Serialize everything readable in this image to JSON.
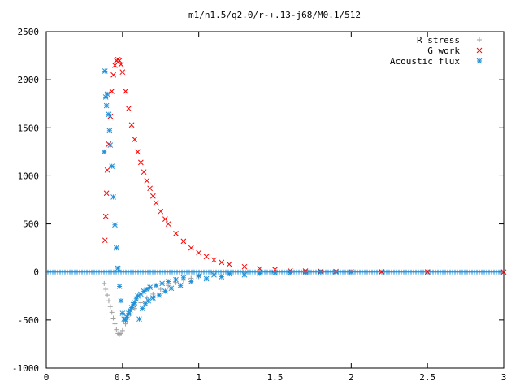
{
  "chart_data": {
    "type": "scatter",
    "title": "m1/n1.5/q2.0/r-+.13-j68/M0.1/512",
    "xlabel": "",
    "ylabel": "",
    "xlim": [
      0,
      3
    ],
    "ylim": [
      -1000,
      2500
    ],
    "x_ticks": [
      0,
      0.5,
      1,
      1.5,
      2,
      2.5,
      3
    ],
    "x_tick_labels": [
      "0",
      "0.5",
      "1",
      "1.5",
      "2",
      "2.5",
      "3"
    ],
    "y_ticks": [
      -1000,
      -500,
      0,
      500,
      1000,
      1500,
      2000,
      2500
    ],
    "y_tick_labels": [
      "-1000",
      "-500",
      "0",
      "500",
      "1000",
      "1500",
      "2000",
      "2500"
    ],
    "grid": false,
    "legend_position": "top-right",
    "series": [
      {
        "name": "R stress",
        "marker": "plus",
        "color": "#a0a0a0",
        "points": [
          [
            0.38,
            -120
          ],
          [
            0.39,
            -180
          ],
          [
            0.4,
            -240
          ],
          [
            0.41,
            -300
          ],
          [
            0.42,
            -360
          ],
          [
            0.43,
            -420
          ],
          [
            0.44,
            -480
          ],
          [
            0.45,
            -540
          ],
          [
            0.46,
            -600
          ],
          [
            0.47,
            -640
          ],
          [
            0.48,
            -650
          ],
          [
            0.49,
            -640
          ],
          [
            0.5,
            -610
          ],
          [
            0.52,
            -540
          ],
          [
            0.55,
            -440
          ],
          [
            0.58,
            -380
          ],
          [
            0.62,
            -320
          ],
          [
            0.66,
            -270
          ],
          [
            0.7,
            -230
          ],
          [
            0.75,
            -180
          ],
          [
            0.8,
            -140
          ],
          [
            0.85,
            -110
          ],
          [
            0.9,
            -85
          ],
          [
            0.95,
            -65
          ],
          [
            1.0,
            -50
          ],
          [
            1.1,
            -30
          ],
          [
            1.2,
            -18
          ],
          [
            1.3,
            -10
          ],
          [
            1.4,
            -6
          ],
          [
            1.5,
            -3
          ],
          [
            1.6,
            -2
          ],
          [
            1.7,
            -1
          ],
          [
            1.8,
            0
          ]
        ]
      },
      {
        "name": "G work",
        "marker": "cross",
        "color": "#ff0000",
        "points": [
          [
            0.385,
            330
          ],
          [
            0.39,
            580
          ],
          [
            0.395,
            820
          ],
          [
            0.4,
            1060
          ],
          [
            0.41,
            1330
          ],
          [
            0.42,
            1620
          ],
          [
            0.43,
            1880
          ],
          [
            0.44,
            2050
          ],
          [
            0.45,
            2150
          ],
          [
            0.46,
            2200
          ],
          [
            0.47,
            2210
          ],
          [
            0.48,
            2200
          ],
          [
            0.49,
            2160
          ],
          [
            0.5,
            2080
          ],
          [
            0.52,
            1880
          ],
          [
            0.54,
            1700
          ],
          [
            0.56,
            1530
          ],
          [
            0.58,
            1380
          ],
          [
            0.6,
            1250
          ],
          [
            0.62,
            1140
          ],
          [
            0.64,
            1040
          ],
          [
            0.66,
            950
          ],
          [
            0.68,
            870
          ],
          [
            0.7,
            790
          ],
          [
            0.72,
            720
          ],
          [
            0.75,
            630
          ],
          [
            0.78,
            550
          ],
          [
            0.8,
            500
          ],
          [
            0.85,
            400
          ],
          [
            0.9,
            320
          ],
          [
            0.95,
            250
          ],
          [
            1.0,
            200
          ],
          [
            1.05,
            160
          ],
          [
            1.1,
            125
          ],
          [
            1.15,
            100
          ],
          [
            1.2,
            80
          ],
          [
            1.3,
            55
          ],
          [
            1.4,
            35
          ],
          [
            1.5,
            25
          ],
          [
            1.6,
            15
          ],
          [
            1.7,
            10
          ],
          [
            1.8,
            7
          ],
          [
            1.9,
            5
          ],
          [
            2.0,
            3
          ],
          [
            2.2,
            2
          ],
          [
            2.5,
            1
          ],
          [
            3.0,
            0
          ]
        ]
      },
      {
        "name": "Acoustic flux",
        "marker": "star",
        "color": "#1e8fd8",
        "points": [
          [
            0.38,
            1250
          ],
          [
            0.385,
            2090
          ],
          [
            0.39,
            1820
          ],
          [
            0.395,
            1730
          ],
          [
            0.4,
            1850
          ],
          [
            0.41,
            1640
          ],
          [
            0.415,
            1470
          ],
          [
            0.42,
            1320
          ],
          [
            0.43,
            1100
          ],
          [
            0.44,
            780
          ],
          [
            0.45,
            490
          ],
          [
            0.46,
            250
          ],
          [
            0.47,
            40
          ],
          [
            0.48,
            -150
          ],
          [
            0.49,
            -300
          ],
          [
            0.5,
            -430
          ],
          [
            0.51,
            -490
          ],
          [
            0.52,
            -500
          ],
          [
            0.53,
            -470
          ],
          [
            0.54,
            -430
          ],
          [
            0.55,
            -400
          ],
          [
            0.56,
            -370
          ],
          [
            0.57,
            -340
          ],
          [
            0.58,
            -320
          ],
          [
            0.59,
            -280
          ],
          [
            0.6,
            -250
          ],
          [
            0.61,
            -490
          ],
          [
            0.62,
            -230
          ],
          [
            0.63,
            -380
          ],
          [
            0.64,
            -200
          ],
          [
            0.65,
            -330
          ],
          [
            0.66,
            -180
          ],
          [
            0.67,
            -300
          ],
          [
            0.68,
            -160
          ],
          [
            0.7,
            -270
          ],
          [
            0.72,
            -140
          ],
          [
            0.74,
            -240
          ],
          [
            0.76,
            -120
          ],
          [
            0.78,
            -200
          ],
          [
            0.8,
            -100
          ],
          [
            0.82,
            -170
          ],
          [
            0.85,
            -80
          ],
          [
            0.88,
            -140
          ],
          [
            0.9,
            -60
          ],
          [
            0.95,
            -100
          ],
          [
            1.0,
            -40
          ],
          [
            1.05,
            -70
          ],
          [
            1.1,
            -30
          ],
          [
            1.15,
            -50
          ],
          [
            1.2,
            -20
          ],
          [
            1.3,
            -30
          ],
          [
            1.4,
            -15
          ],
          [
            1.5,
            -10
          ],
          [
            1.6,
            -6
          ],
          [
            1.7,
            -3
          ],
          [
            1.8,
            -2
          ],
          [
            1.9,
            -1
          ],
          [
            2.0,
            0
          ]
        ]
      }
    ]
  }
}
